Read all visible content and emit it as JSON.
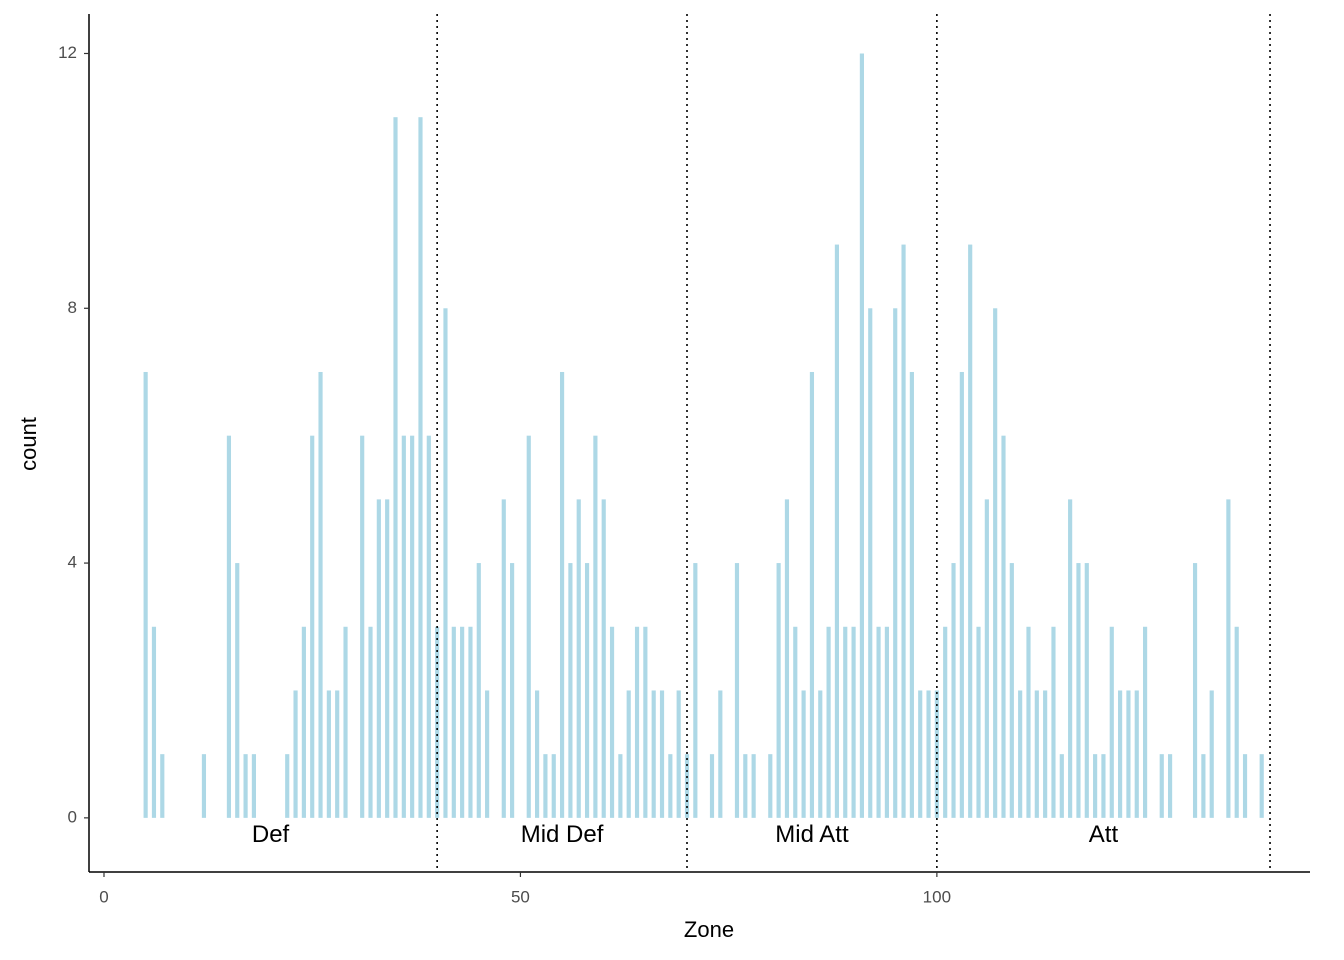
{
  "chart_data": {
    "type": "bar",
    "x_label": "Zone",
    "y_label": "count",
    "color": "#add8e6",
    "x": [
      5,
      6,
      7,
      12,
      15,
      16,
      17,
      18,
      22,
      23,
      24,
      25,
      26,
      27,
      28,
      29,
      31,
      32,
      33,
      34,
      35,
      36,
      37,
      38,
      39,
      40,
      41,
      42,
      43,
      44,
      45,
      46,
      48,
      49,
      51,
      52,
      53,
      54,
      55,
      56,
      57,
      58,
      59,
      60,
      61,
      62,
      63,
      64,
      65,
      66,
      67,
      68,
      69,
      70,
      71,
      73,
      74,
      76,
      77,
      78,
      80,
      81,
      82,
      83,
      84,
      85,
      86,
      87,
      88,
      89,
      90,
      91,
      92,
      93,
      94,
      95,
      96,
      97,
      98,
      99,
      100,
      101,
      102,
      103,
      104,
      105,
      106,
      107,
      108,
      109,
      110,
      111,
      112,
      113,
      114,
      115,
      116,
      117,
      118,
      119,
      120,
      121,
      122,
      123,
      124,
      125,
      127,
      128,
      131,
      132,
      133,
      135,
      136,
      137,
      139
    ],
    "values": [
      7,
      3,
      1,
      1,
      6,
      4,
      1,
      1,
      1,
      2,
      3,
      6,
      7,
      2,
      2,
      3,
      6,
      3,
      5,
      5,
      11,
      6,
      6,
      11,
      6,
      3,
      8,
      3,
      3,
      3,
      4,
      2,
      5,
      4,
      6,
      2,
      1,
      1,
      7,
      4,
      5,
      4,
      6,
      5,
      3,
      1,
      2,
      3,
      3,
      2,
      2,
      1,
      2,
      1,
      4,
      1,
      2,
      4,
      1,
      1,
      1,
      4,
      5,
      3,
      2,
      7,
      2,
      3,
      9,
      3,
      3,
      12,
      8,
      3,
      3,
      8,
      9,
      7,
      2,
      2,
      2,
      3,
      4,
      7,
      9,
      3,
      5,
      8,
      6,
      4,
      2,
      3,
      2,
      2,
      3,
      1,
      5,
      4,
      4,
      1,
      1,
      3,
      2,
      2,
      2,
      3,
      1,
      1,
      4,
      1,
      2,
      5,
      3,
      1,
      1
    ],
    "xlim": [
      -1.8,
      144.8
    ],
    "ylim": [
      -0.85,
      12.62
    ],
    "xticks": [
      0,
      50,
      100
    ],
    "yticks": [
      0,
      4,
      8,
      12
    ],
    "vlines": [
      40,
      70,
      100,
      140
    ],
    "annotations": [
      {
        "text": "Def",
        "x": 20,
        "y": -0.28
      },
      {
        "text": "Mid Def",
        "x": 55,
        "y": -0.28
      },
      {
        "text": "Mid Att",
        "x": 85,
        "y": -0.28
      },
      {
        "text": "Att",
        "x": 120,
        "y": -0.28
      }
    ]
  }
}
